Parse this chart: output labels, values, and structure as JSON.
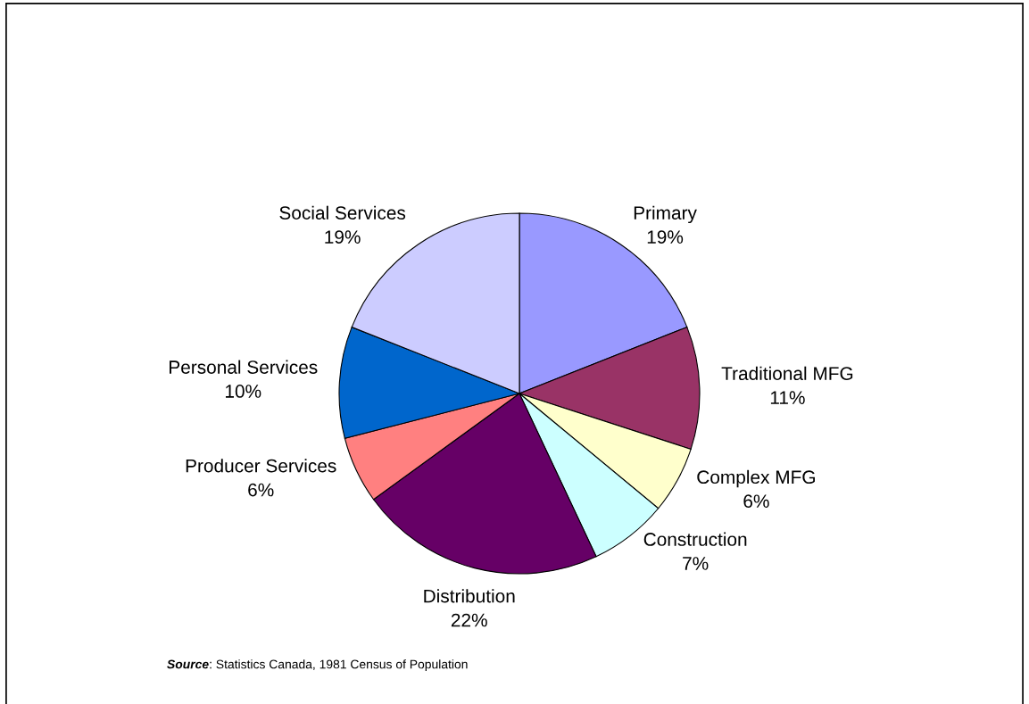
{
  "chart_data": {
    "type": "pie",
    "categories": [
      "Primary",
      "Traditional MFG",
      "Complex MFG",
      "Construction",
      "Distribution",
      "Producer Services",
      "Personal Services",
      "Social Services"
    ],
    "values": [
      19,
      11,
      6,
      7,
      22,
      6,
      10,
      19
    ],
    "value_labels": [
      "19%",
      "11%",
      "6%",
      "7%",
      "22%",
      "6%",
      "10%",
      "19%"
    ],
    "colors": [
      "#9999ff",
      "#993366",
      "#ffffcc",
      "#ccffff",
      "#660066",
      "#ff8080",
      "#0066cc",
      "#ccccff"
    ],
    "annotations": [
      "Source: Statistics Canada, 1981 Census of Population"
    ]
  }
}
